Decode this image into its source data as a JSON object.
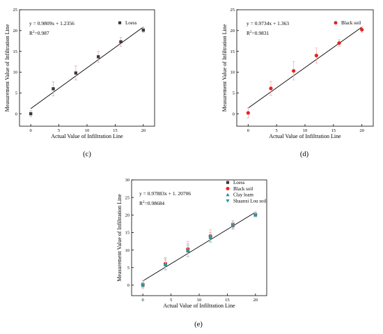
{
  "chart_data": [
    {
      "panel_label": "(c)",
      "type": "scatter",
      "xlabel": "Actual Value of Infiltration Line",
      "ylabel": "Measurement Value of Infiltration Line",
      "xlim": [
        -2,
        22
      ],
      "ylim": [
        -3,
        25
      ],
      "xticks": [
        0,
        5,
        10,
        15,
        20
      ],
      "yticks": [
        0,
        5,
        10,
        15,
        20,
        25
      ],
      "equation": "y = 0.9809x + 1.2356",
      "r2_prefix": "R",
      "r2_value": "=0.987",
      "fit": {
        "slope": 0.9809,
        "intercept": 1.2356,
        "x_range": [
          0,
          20
        ]
      },
      "legend": "top-right",
      "series": [
        {
          "name": "Loess",
          "marker": "square",
          "color": "#3a3a3a",
          "error_color": "#d9a7a7",
          "x": [
            0,
            4,
            8,
            12,
            16,
            20
          ],
          "y": [
            0.0,
            6.0,
            9.8,
            13.7,
            17.3,
            20.1
          ],
          "err": [
            0.7,
            1.7,
            1.7,
            1.3,
            1.1,
            0.6
          ]
        }
      ]
    },
    {
      "panel_label": "(d)",
      "type": "scatter",
      "xlabel": "Actual Value of Infiltration Line",
      "ylabel": "Measurement Value of Infiltration Line",
      "xlim": [
        -2,
        22
      ],
      "ylim": [
        -3,
        25
      ],
      "xticks": [
        0,
        5,
        10,
        15,
        20
      ],
      "yticks": [
        0,
        5,
        10,
        15,
        20,
        25
      ],
      "equation": "y = 0.9734x + 1.363",
      "r2_prefix": "R",
      "r2_value": "=0.9831",
      "fit": {
        "slope": 0.9734,
        "intercept": 1.363,
        "x_range": [
          0,
          20
        ]
      },
      "legend": "top-right",
      "series": [
        {
          "name": "Black soil",
          "marker": "circle",
          "color": "#e8221f",
          "error_color": "#f0a8a8",
          "x": [
            0,
            4,
            8,
            12,
            16,
            20
          ],
          "y": [
            0.2,
            6.1,
            10.3,
            14.0,
            17.0,
            20.2
          ],
          "err": [
            1.2,
            1.7,
            2.2,
            1.8,
            0.8,
            0.7
          ]
        }
      ]
    },
    {
      "panel_label": "(e)",
      "type": "scatter",
      "xlabel": "Actual Value of Infiltration Line",
      "ylabel": "Measurement Value of Infiltration Line",
      "xlim": [
        -2,
        22
      ],
      "ylim": [
        -3,
        30
      ],
      "xticks": [
        0,
        5,
        10,
        15,
        20
      ],
      "yticks": [
        0,
        5,
        10,
        15,
        20,
        25,
        30
      ],
      "equation": "y = 0.97883x + 1. 20706",
      "r2_prefix": "R",
      "r2_value": "=0.98684",
      "fit": {
        "slope": 0.97883,
        "intercept": 1.20706,
        "x_range": [
          0,
          20
        ]
      },
      "legend": "top-right",
      "series": [
        {
          "name": "Loess",
          "marker": "square",
          "color": "#3a3a3a",
          "error_color": "#d9a7a7",
          "x": [
            0,
            4,
            8,
            12,
            16,
            20
          ],
          "y": [
            0.0,
            6.0,
            9.8,
            13.7,
            17.3,
            20.1
          ],
          "err": [
            0.7,
            1.7,
            1.7,
            1.3,
            1.1,
            0.6
          ]
        },
        {
          "name": "Black soil",
          "marker": "circle",
          "color": "#e8221f",
          "error_color": "#f0a8a8",
          "x": [
            0,
            4,
            8,
            12,
            16,
            20
          ],
          "y": [
            0.2,
            6.1,
            10.3,
            14.0,
            17.0,
            20.2
          ],
          "err": [
            1.2,
            1.7,
            2.2,
            1.8,
            0.8,
            0.7
          ]
        },
        {
          "name": "Clay loam",
          "marker": "triangle-up",
          "color": "#2a86c8",
          "error_color": "#b9c8e6",
          "x": [
            0,
            4,
            8,
            12,
            16,
            20
          ],
          "y": [
            0.1,
            5.8,
            10.0,
            13.6,
            17.0,
            20.0
          ],
          "err": [
            0.8,
            1.5,
            1.8,
            1.4,
            1.0,
            0.6
          ]
        },
        {
          "name": "Shaanxi Lou soil",
          "marker": "triangle-down",
          "color": "#1fa08e",
          "error_color": "#a5d8cf",
          "x": [
            0,
            4,
            8,
            12,
            16,
            20
          ],
          "y": [
            0.0,
            5.7,
            9.7,
            13.4,
            16.8,
            20.0
          ],
          "err": [
            0.6,
            1.3,
            1.5,
            1.2,
            0.9,
            0.5
          ]
        }
      ]
    }
  ]
}
